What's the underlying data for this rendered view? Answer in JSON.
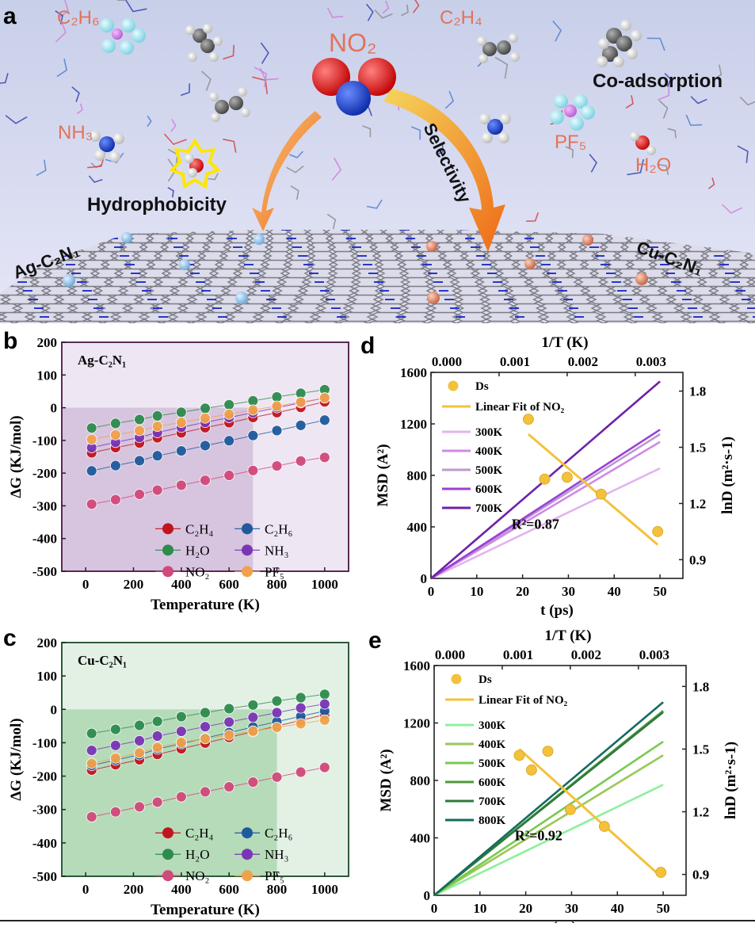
{
  "panel_a": {
    "letter": "a",
    "co_adsorption": "Co-adsorption",
    "hydrophobicity": "Hydrophobicity",
    "selectivity": "Selectivity",
    "ag_label": "Ag-C₂N₁",
    "cu_label": "Cu-C₂N₁",
    "molecules": {
      "no2": "NO₂",
      "c2h6": "C₂H₆",
      "c2h4": "C₂H₄",
      "nh3": "NH₃",
      "pf5": "PF₅",
      "h2o": "H₂O"
    },
    "colors": {
      "background_top": "#c9d0ea",
      "background_bottom": "#e4e4f6",
      "label_orange": "#e2735a",
      "arrow_orange": "#f07b28",
      "arrow_yellow": "#f6c244",
      "ag_atom": "#8fc0e6",
      "cu_atom": "#e0876a"
    }
  },
  "chart_data": [
    {
      "panel": "b",
      "type": "scatter",
      "subtitle": "Ag-C₂N₁",
      "xlabel": "Temperature (K)",
      "ylabel": "ΔG (KJ/mol)",
      "xlim": [
        -100,
        1100
      ],
      "ylim": [
        -500,
        200
      ],
      "xticks": [
        0,
        200,
        400,
        600,
        800,
        1000
      ],
      "yticks": [
        -500,
        -400,
        -300,
        -200,
        -100,
        0,
        100,
        200
      ],
      "x": [
        25,
        125,
        225,
        300,
        400,
        500,
        600,
        700,
        800,
        900,
        1000
      ],
      "series": [
        {
          "name": "C₂H₄",
          "color": "#c0151d",
          "values": [
            -138,
            -122,
            -108,
            -92,
            -77,
            -61,
            -46,
            -30,
            -15,
            1,
            18
          ]
        },
        {
          "name": "C₂H₆",
          "color": "#1f5a9c",
          "values": [
            -193,
            -177,
            -162,
            -147,
            -132,
            -116,
            -101,
            -85,
            -70,
            -54,
            -38
          ]
        },
        {
          "name": "H₂O",
          "color": "#2e8b4e",
          "values": [
            -62,
            -48,
            -36,
            -25,
            -14,
            -2,
            9,
            21,
            33,
            44,
            55
          ]
        },
        {
          "name": "NH₃",
          "color": "#7a35b5",
          "values": [
            -122,
            -106,
            -91,
            -76,
            -60,
            -45,
            -30,
            -15,
            0,
            15,
            30
          ]
        },
        {
          "name": "NO₂",
          "color": "#d1497a",
          "values": [
            -295,
            -281,
            -265,
            -252,
            -237,
            -222,
            -207,
            -192,
            -178,
            -163,
            -152
          ]
        },
        {
          "name": "PF₅",
          "color": "#f2a14b",
          "values": [
            -97,
            -83,
            -70,
            -57,
            -45,
            -32,
            -20,
            -7,
            5,
            17,
            30
          ]
        }
      ],
      "shading": {
        "dark_xmax": 700,
        "dark_ymax": 0,
        "light_color": "#efe6f3",
        "dark_color": "#d7c4df",
        "frame_color": "#5a2a55"
      }
    },
    {
      "panel": "c",
      "type": "scatter",
      "subtitle": "Cu-C₂N₁",
      "xlabel": "Temperature (K)",
      "ylabel": "ΔG (KJ/mol)",
      "xlim": [
        -100,
        1100
      ],
      "ylim": [
        -500,
        200
      ],
      "xticks": [
        0,
        200,
        400,
        600,
        800,
        1000
      ],
      "yticks": [
        -500,
        -400,
        -300,
        -200,
        -100,
        0,
        100,
        200
      ],
      "x": [
        25,
        125,
        225,
        300,
        400,
        500,
        600,
        700,
        800,
        900,
        1000
      ],
      "series": [
        {
          "name": "C₂H₄",
          "color": "#c0151d",
          "values": [
            -182,
            -166,
            -151,
            -135,
            -118,
            -101,
            -84,
            -67,
            -50,
            -33,
            -16
          ]
        },
        {
          "name": "C₂H₆",
          "color": "#1f5a9c",
          "values": [
            -168,
            -152,
            -136,
            -119,
            -103,
            -86,
            -70,
            -53,
            -37,
            -21,
            -5
          ]
        },
        {
          "name": "H₂O",
          "color": "#2e8b4e",
          "values": [
            -72,
            -60,
            -48,
            -36,
            -22,
            -10,
            2,
            13,
            25,
            35,
            45
          ]
        },
        {
          "name": "NH₃",
          "color": "#7a35b5",
          "values": [
            -123,
            -108,
            -94,
            -80,
            -66,
            -52,
            -38,
            -24,
            -10,
            4,
            16
          ]
        },
        {
          "name": "NO₂",
          "color": "#d1497a",
          "values": [
            -322,
            -307,
            -292,
            -278,
            -262,
            -247,
            -232,
            -218,
            -203,
            -188,
            -174
          ]
        },
        {
          "name": "PF₅",
          "color": "#f2a14b",
          "values": [
            -162,
            -146,
            -130,
            -114,
            -99,
            -88,
            -77,
            -65,
            -54,
            -43,
            -32
          ]
        }
      ],
      "shading": {
        "dark_xmax": 800,
        "dark_ymax": 0,
        "light_color": "#e3f1e5",
        "dark_color": "#b6dbb9",
        "frame_color": "#2e5a3a"
      }
    },
    {
      "panel": "d",
      "type": "line",
      "top_label": "1/T (K)",
      "xlabel": "t (ps)",
      "ylabel": "MSD (A²)",
      "ylabel_right": "lnD (m²·s-1)",
      "xlim": [
        0,
        55
      ],
      "ylim": [
        0,
        1600
      ],
      "xticks": [
        0,
        10,
        20,
        30,
        40,
        50
      ],
      "yticks": [
        0,
        400,
        800,
        1200,
        1600
      ],
      "top_ticks": [
        "0.000",
        "0.001",
        "0.002",
        "0.003"
      ],
      "top_tick_values": [
        0,
        0.001,
        0.002,
        0.003
      ],
      "top_lim": [
        0,
        0.0037
      ],
      "right_ticks": [
        "0.9",
        "1.2",
        "1.5",
        "1.8"
      ],
      "right_tick_values": [
        0.9,
        1.2,
        1.5,
        1.8
      ],
      "right_lim": [
        0.8,
        1.9
      ],
      "series": [
        {
          "name": "300K",
          "color": "#e3b3ef",
          "x": [
            0,
            50
          ],
          "values": [
            0,
            855
          ]
        },
        {
          "name": "400K",
          "color": "#cf8ae6",
          "x": [
            0,
            50
          ],
          "values": [
            0,
            1060
          ]
        },
        {
          "name": "500K",
          "color": "#b99ad2",
          "x": [
            0,
            50
          ],
          "values": [
            0,
            1120
          ]
        },
        {
          "name": "600K",
          "color": "#9b40d6",
          "x": [
            0,
            50
          ],
          "values": [
            0,
            1155
          ]
        },
        {
          "name": "700K",
          "color": "#6d22a8",
          "x": [
            0,
            50
          ],
          "values": [
            0,
            1530
          ]
        }
      ],
      "ds": {
        "name": "Ds",
        "color": "#f3c23a",
        "x_invT": [
          0.00143,
          0.00167,
          0.002,
          0.0025,
          0.00333
        ],
        "lnD": [
          1.65,
          1.33,
          1.34,
          1.25,
          1.05
        ]
      },
      "fit": {
        "name": "Linear Fit of NO₂",
        "color": "#f3c23a",
        "x_invT": [
          0.00143,
          0.00333
        ],
        "lnD": [
          1.57,
          0.98
        ]
      },
      "annotation": "R²=0.87"
    },
    {
      "panel": "e",
      "type": "line",
      "top_label": "1/T (K)",
      "xlabel": "t (ps)",
      "ylabel": "MSD (A²)",
      "ylabel_right": "lnD (m²·s-1)",
      "xlim": [
        0,
        55
      ],
      "ylim": [
        0,
        1600
      ],
      "xticks": [
        0,
        10,
        20,
        30,
        40,
        50
      ],
      "yticks": [
        0,
        400,
        800,
        1200,
        1600
      ],
      "top_ticks": [
        "0.000",
        "0.001",
        "0.002",
        "0.003"
      ],
      "top_tick_values": [
        0,
        0.001,
        0.002,
        0.003
      ],
      "top_lim": [
        0,
        0.0037
      ],
      "right_ticks": [
        "0.9",
        "1.2",
        "1.5",
        "1.8"
      ],
      "right_tick_values": [
        0.9,
        1.2,
        1.5,
        1.8
      ],
      "right_lim": [
        0.8,
        1.9
      ],
      "series": [
        {
          "name": "300K",
          "color": "#8df09b",
          "x": [
            0,
            50
          ],
          "values": [
            0,
            770
          ]
        },
        {
          "name": "400K",
          "color": "#9cc75a",
          "x": [
            0,
            50
          ],
          "values": [
            0,
            975
          ]
        },
        {
          "name": "500K",
          "color": "#7ac94f",
          "x": [
            0,
            50
          ],
          "values": [
            0,
            1070
          ]
        },
        {
          "name": "600K",
          "color": "#4f9a3b",
          "x": [
            0,
            50
          ],
          "values": [
            0,
            1285
          ]
        },
        {
          "name": "700K",
          "color": "#2e7a3b",
          "x": [
            0,
            50
          ],
          "values": [
            0,
            1275
          ]
        },
        {
          "name": "800K",
          "color": "#146b5e",
          "x": [
            0,
            50
          ],
          "values": [
            0,
            1345
          ]
        }
      ],
      "ds": {
        "name": "Ds",
        "color": "#f3c23a",
        "x_invT": [
          0.00125,
          0.00143,
          0.00167,
          0.002,
          0.0025,
          0.00333
        ],
        "lnD": [
          1.47,
          1.4,
          1.49,
          1.21,
          1.13,
          0.91
        ]
      },
      "fit": {
        "name": "Linear Fit of NO₂",
        "color": "#f3c23a",
        "x_invT": [
          0.00125,
          0.00333
        ],
        "lnD": [
          1.5,
          0.89
        ]
      },
      "annotation": "R²=0.92"
    }
  ]
}
